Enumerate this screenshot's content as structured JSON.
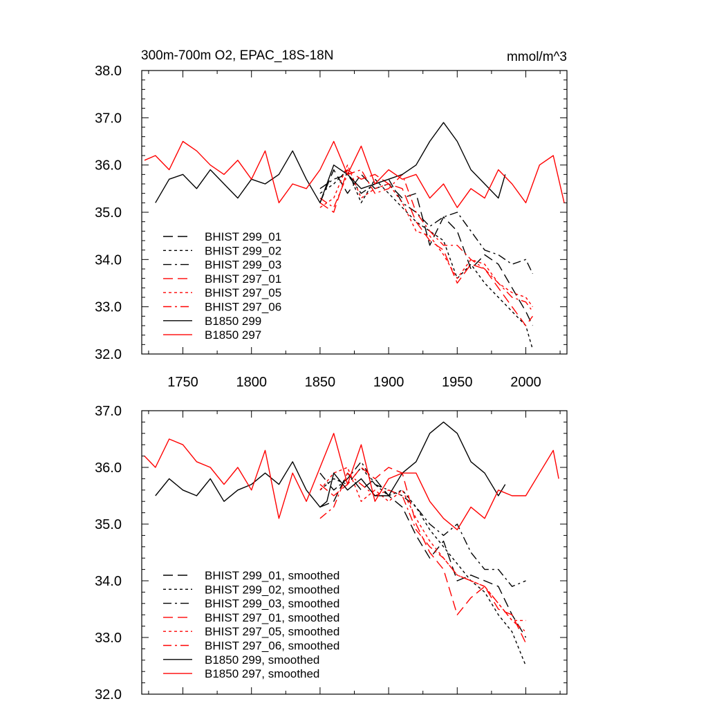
{
  "chart_data": [
    {
      "type": "line",
      "title": "300m-700m O2, EPAC_18S-18N",
      "units": "mmol/m^3",
      "xlim": [
        1720,
        2030
      ],
      "ylim": [
        32.0,
        38.0
      ],
      "xticks": [
        1750,
        1800,
        1850,
        1900,
        1950,
        2000
      ],
      "xtick_labels": [
        "1750",
        "1800",
        "1850",
        "1900",
        "1950",
        "2000"
      ],
      "yticks": [
        32.0,
        33.0,
        34.0,
        35.0,
        36.0,
        37.0,
        38.0
      ],
      "ytick_labels": [
        "32.0",
        "33.0",
        "34.0",
        "35.0",
        "36.0",
        "37.0",
        "38.0"
      ],
      "legend_position": "lower-left",
      "series": [
        {
          "name": "BHIST 299_01",
          "color": "#000000",
          "dash": "dash",
          "x": [
            1850,
            1860,
            1870,
            1880,
            1890,
            1900,
            1910,
            1920,
            1930,
            1940,
            1950,
            1960,
            1970,
            1980,
            1990,
            2000,
            2005
          ],
          "y": [
            35.2,
            35.9,
            35.4,
            35.8,
            35.5,
            35.6,
            35.3,
            35.4,
            34.3,
            34.9,
            34.6,
            33.8,
            34.1,
            33.9,
            33.4,
            32.9,
            32.6
          ]
        },
        {
          "name": "BHIST 299_02",
          "color": "#000000",
          "dash": "dot",
          "x": [
            1850,
            1860,
            1870,
            1880,
            1890,
            1900,
            1910,
            1920,
            1930,
            1940,
            1950,
            1960,
            1970,
            1980,
            1990,
            2000,
            2005
          ],
          "y": [
            35.4,
            35.6,
            35.9,
            35.2,
            35.7,
            35.4,
            35.1,
            34.8,
            34.6,
            34.4,
            33.6,
            33.9,
            33.5,
            33.2,
            32.9,
            32.6,
            32.1
          ]
        },
        {
          "name": "BHIST 299_03",
          "color": "#000000",
          "dash": "dashdot",
          "x": [
            1850,
            1860,
            1870,
            1880,
            1890,
            1900,
            1910,
            1920,
            1930,
            1940,
            1950,
            1960,
            1970,
            1980,
            1990,
            2000,
            2005
          ],
          "y": [
            35.5,
            35.7,
            35.8,
            35.4,
            35.6,
            35.7,
            35.2,
            35.0,
            34.7,
            34.9,
            35.0,
            34.6,
            34.2,
            34.1,
            33.9,
            34.0,
            33.7
          ]
        },
        {
          "name": "BHIST 297_01",
          "color": "#ff0000",
          "dash": "dash",
          "x": [
            1850,
            1860,
            1870,
            1880,
            1890,
            1900,
            1910,
            1920,
            1930,
            1940,
            1950,
            1960,
            1970,
            1980,
            1990,
            2000,
            2005
          ],
          "y": [
            35.2,
            35.0,
            35.9,
            35.7,
            35.8,
            35.6,
            35.5,
            34.8,
            34.4,
            34.2,
            33.5,
            33.9,
            33.8,
            33.4,
            33.0,
            32.6,
            32.8
          ]
        },
        {
          "name": "BHIST 297_05",
          "color": "#ff0000",
          "dash": "dot",
          "x": [
            1850,
            1860,
            1870,
            1880,
            1890,
            1900,
            1910,
            1920,
            1930,
            1940,
            1950,
            1960,
            1970,
            1980,
            1990,
            2000,
            2005
          ],
          "y": [
            35.1,
            35.3,
            36.0,
            35.3,
            35.5,
            35.6,
            35.2,
            34.6,
            34.5,
            34.1,
            33.6,
            34.0,
            33.9,
            33.5,
            33.3,
            33.2,
            33.0
          ]
        },
        {
          "name": "BHIST 297_06",
          "color": "#ff0000",
          "dash": "dashdot",
          "x": [
            1850,
            1860,
            1870,
            1880,
            1890,
            1900,
            1910,
            1920,
            1930,
            1940,
            1950,
            1960,
            1970,
            1980,
            1990,
            2000,
            2005
          ],
          "y": [
            35.3,
            35.1,
            35.8,
            35.9,
            35.4,
            35.5,
            35.8,
            35.0,
            34.6,
            34.3,
            34.3,
            34.0,
            33.8,
            33.5,
            33.2,
            33.1,
            32.9
          ]
        },
        {
          "name": "B1850 299",
          "color": "#000000",
          "dash": "solid",
          "x": [
            1730,
            1740,
            1750,
            1760,
            1770,
            1780,
            1790,
            1800,
            1810,
            1820,
            1830,
            1840,
            1850,
            1860,
            1870,
            1880,
            1890,
            1900,
            1910,
            1920,
            1930,
            1940,
            1950,
            1960,
            1970,
            1980,
            1985
          ],
          "y": [
            35.2,
            35.7,
            35.8,
            35.5,
            35.9,
            35.6,
            35.3,
            35.7,
            35.6,
            35.8,
            36.3,
            35.7,
            35.2,
            36.0,
            35.8,
            35.5,
            35.6,
            35.7,
            35.8,
            36.0,
            36.5,
            36.9,
            36.5,
            35.9,
            35.6,
            35.3,
            35.8
          ]
        },
        {
          "name": "B1850 297",
          "color": "#ff0000",
          "dash": "solid",
          "x": [
            1722,
            1730,
            1740,
            1750,
            1760,
            1770,
            1780,
            1790,
            1800,
            1810,
            1820,
            1830,
            1840,
            1850,
            1860,
            1870,
            1880,
            1890,
            1900,
            1910,
            1920,
            1930,
            1940,
            1950,
            1960,
            1970,
            1980,
            1990,
            2000,
            2010,
            2020,
            2028
          ],
          "y": [
            36.1,
            36.2,
            35.9,
            36.5,
            36.3,
            36.0,
            35.8,
            36.1,
            35.7,
            36.3,
            35.2,
            35.6,
            35.5,
            35.9,
            36.5,
            35.8,
            36.4,
            35.6,
            35.9,
            35.7,
            35.8,
            35.3,
            35.6,
            35.1,
            35.5,
            35.3,
            35.9,
            35.6,
            35.2,
            36.0,
            36.2,
            35.2
          ]
        }
      ]
    },
    {
      "type": "line",
      "xlim": [
        1720,
        2030
      ],
      "ylim": [
        32.0,
        37.0
      ],
      "xticks": [
        1750,
        1800,
        1850,
        1900,
        1950,
        2000
      ],
      "yticks": [
        32.0,
        33.0,
        34.0,
        35.0,
        36.0,
        37.0
      ],
      "ytick_labels": [
        "32.0",
        "33.0",
        "34.0",
        "35.0",
        "36.0",
        "37.0"
      ],
      "legend_position": "lower-left",
      "series": [
        {
          "name": "BHIST 299_01, smoothed",
          "color": "#000000",
          "dash": "dash",
          "x": [
            1850,
            1860,
            1870,
            1880,
            1890,
            1900,
            1910,
            1920,
            1930,
            1940,
            1950,
            1960,
            1970,
            1980,
            1990,
            2000
          ],
          "y": [
            35.3,
            35.4,
            35.9,
            35.6,
            35.8,
            35.5,
            35.3,
            34.8,
            34.4,
            34.7,
            34.0,
            34.1,
            34.0,
            33.9,
            33.4,
            33.0
          ]
        },
        {
          "name": "BHIST 299_02, smoothed",
          "color": "#000000",
          "dash": "dot",
          "x": [
            1850,
            1860,
            1870,
            1880,
            1890,
            1900,
            1910,
            1920,
            1930,
            1940,
            1950,
            1960,
            1970,
            1980,
            1990,
            2000
          ],
          "y": [
            35.6,
            35.8,
            35.7,
            36.0,
            35.7,
            35.5,
            35.6,
            35.3,
            34.9,
            34.6,
            34.3,
            34.0,
            33.8,
            33.4,
            33.1,
            32.5
          ]
        },
        {
          "name": "BHIST 299_03, smoothed",
          "color": "#000000",
          "dash": "dashdot",
          "x": [
            1850,
            1860,
            1870,
            1880,
            1890,
            1900,
            1910,
            1920,
            1930,
            1940,
            1950,
            1960,
            1970,
            1980,
            1990,
            2000
          ],
          "y": [
            35.9,
            35.6,
            35.8,
            36.1,
            35.7,
            35.6,
            35.5,
            35.3,
            35.0,
            34.8,
            35.0,
            34.5,
            34.2,
            34.2,
            33.9,
            34.0
          ]
        },
        {
          "name": "BHIST 297_01, smoothed",
          "color": "#ff0000",
          "dash": "dash",
          "x": [
            1850,
            1860,
            1870,
            1880,
            1890,
            1900,
            1910,
            1920,
            1930,
            1940,
            1950,
            1960,
            1970,
            1980,
            1990,
            2000
          ],
          "y": [
            35.7,
            35.5,
            35.7,
            36.0,
            35.8,
            36.0,
            35.9,
            35.0,
            34.5,
            34.2,
            33.4,
            33.7,
            33.9,
            33.5,
            33.4,
            32.9
          ]
        },
        {
          "name": "BHIST 297_05, smoothed",
          "color": "#ff0000",
          "dash": "dot",
          "x": [
            1850,
            1860,
            1870,
            1880,
            1890,
            1900,
            1910,
            1920,
            1930,
            1940,
            1950,
            1960,
            1970,
            1980,
            1990,
            2000
          ],
          "y": [
            35.6,
            35.9,
            36.0,
            35.4,
            35.6,
            35.4,
            35.6,
            35.1,
            34.7,
            34.4,
            34.1,
            34.0,
            33.9,
            33.6,
            33.3,
            33.3
          ]
        },
        {
          "name": "BHIST 297_06, smoothed",
          "color": "#ff0000",
          "dash": "dashdot",
          "x": [
            1850,
            1860,
            1870,
            1880,
            1890,
            1900,
            1910,
            1920,
            1930,
            1940,
            1950,
            1960,
            1970,
            1980,
            1990,
            2000
          ],
          "y": [
            35.1,
            35.3,
            35.9,
            35.7,
            35.5,
            35.6,
            35.5,
            34.9,
            34.6,
            34.4,
            34.1,
            34.0,
            33.9,
            33.6,
            33.3,
            33.1
          ]
        },
        {
          "name": "B1850 299, smoothed",
          "color": "#000000",
          "dash": "solid",
          "x": [
            1730,
            1740,
            1750,
            1760,
            1770,
            1780,
            1790,
            1800,
            1810,
            1820,
            1830,
            1840,
            1850,
            1855,
            1860,
            1870,
            1880,
            1890,
            1900,
            1910,
            1920,
            1930,
            1940,
            1950,
            1960,
            1970,
            1980,
            1985
          ],
          "y": [
            35.5,
            35.8,
            35.6,
            35.5,
            35.8,
            35.4,
            35.6,
            35.7,
            35.9,
            35.7,
            36.1,
            35.6,
            35.3,
            35.4,
            35.9,
            35.6,
            35.8,
            35.5,
            35.5,
            35.9,
            36.1,
            36.6,
            36.8,
            36.6,
            36.1,
            35.9,
            35.5,
            35.7
          ]
        },
        {
          "name": "B1850 297, smoothed",
          "color": "#ff0000",
          "dash": "solid",
          "x": [
            1722,
            1730,
            1740,
            1750,
            1760,
            1770,
            1780,
            1790,
            1800,
            1810,
            1820,
            1830,
            1840,
            1850,
            1860,
            1870,
            1880,
            1890,
            1900,
            1910,
            1920,
            1930,
            1940,
            1950,
            1960,
            1970,
            1980,
            1990,
            2000,
            2010,
            2020,
            2024
          ],
          "y": [
            36.2,
            36.0,
            36.5,
            36.4,
            36.1,
            36.0,
            35.7,
            36.0,
            35.6,
            36.3,
            35.1,
            35.9,
            35.4,
            36.0,
            36.6,
            35.7,
            36.4,
            35.4,
            35.8,
            35.9,
            35.9,
            35.4,
            35.1,
            34.9,
            35.3,
            35.1,
            35.6,
            35.5,
            35.5,
            35.9,
            36.3,
            35.8
          ]
        }
      ]
    }
  ]
}
